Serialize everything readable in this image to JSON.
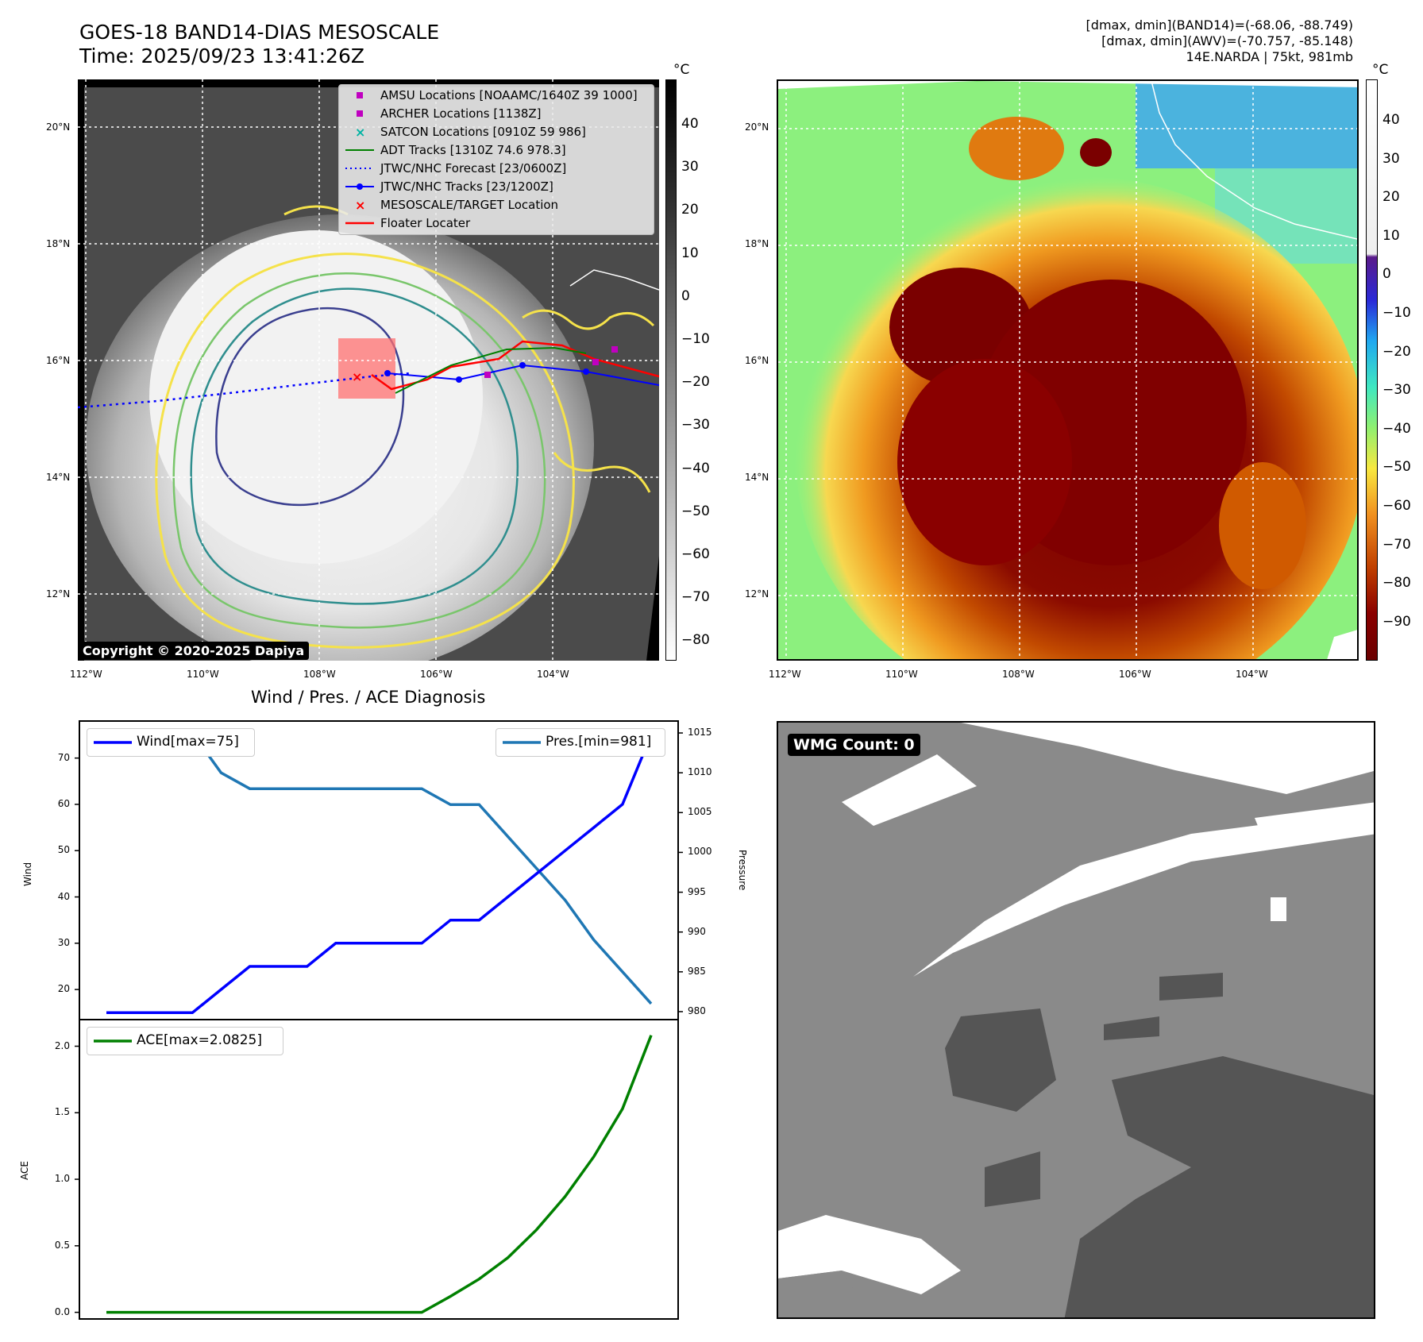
{
  "header": {
    "title_line1": "GOES-18 BAND14-DIAS MESOSCALE",
    "title_line2": "Time: 2025/09/23 13:41:26Z",
    "info_line1": "[dmax, dmin](BAND14)=(-68.06, -88.749)",
    "info_line2": "[dmax, dmin](AWV)=(-70.757, -85.148)",
    "info_line3": "14E.NARDA | 75kt, 981mb"
  },
  "map_axes": {
    "lat_labels": [
      "20°N",
      "18°N",
      "16°N",
      "14°N",
      "12°N"
    ],
    "lon_labels": [
      "112°W",
      "110°W",
      "108°W",
      "106°W",
      "104°W"
    ]
  },
  "left_colorbar": {
    "unit": "°C",
    "ticks": [
      "40",
      "30",
      "20",
      "10",
      "0",
      "−10",
      "−20",
      "−30",
      "−40",
      "−50",
      "−60",
      "−70",
      "−80"
    ]
  },
  "right_colorbar": {
    "unit": "°C",
    "ticks": [
      "40",
      "30",
      "20",
      "10",
      "0",
      "−10",
      "−20",
      "−30",
      "−40",
      "−50",
      "−60",
      "−70",
      "−80",
      "−90"
    ]
  },
  "map_legend": {
    "items": [
      {
        "label": "AMSU Locations [NOAAMC/1640Z 39 1000]",
        "symbol": "square",
        "color": "#c000c0"
      },
      {
        "label": "ARCHER Locations [1138Z]",
        "symbol": "square",
        "color": "#c000c0"
      },
      {
        "label": "SATCON Locations [0910Z 59 986]",
        "symbol": "x",
        "color": "#00b3a3"
      },
      {
        "label": "ADT Tracks [1310Z 74.6 978.3]",
        "symbol": "line",
        "color": "#008000"
      },
      {
        "label": "JTWC/NHC Forecast [23/0600Z]",
        "symbol": "dotted",
        "color": "#0000ff"
      },
      {
        "label": "JTWC/NHC Tracks [23/1200Z]",
        "symbol": "line-dot",
        "color": "#0000ff"
      },
      {
        "label": "MESOSCALE/TARGET Location",
        "symbol": "x",
        "color": "#ff0000"
      },
      {
        "label": "Floater Locater",
        "symbol": "line",
        "color": "#ff0000"
      }
    ]
  },
  "copyright": "Copyright © 2020-2025 Dapiya",
  "diagnosis": {
    "title": "Wind / Pres. / ACE Diagnosis",
    "wind_ylabel": "Wind",
    "pressure_ylabel": "Pressure",
    "ace_ylabel": "ACE",
    "wind_legend": "Wind[max=75]",
    "pres_legend": "Pres.[min=981]",
    "ace_legend": "ACE[max=2.0825]",
    "wind_ticks": [
      "70",
      "60",
      "50",
      "40",
      "30",
      "20"
    ],
    "pres_ticks": [
      "1015",
      "1010",
      "1005",
      "1000",
      "995",
      "990",
      "985",
      "980"
    ],
    "ace_ticks": [
      "2.0",
      "1.5",
      "1.0",
      "0.5",
      "0.0"
    ]
  },
  "wmg": {
    "label": "WMG Count: 0"
  },
  "chart_data": [
    {
      "type": "line",
      "title": "Wind / Pres. / ACE Diagnosis",
      "ylabel": "Wind",
      "ylim": [
        13.5,
        78
      ],
      "series": [
        {
          "name": "Wind[max=75]",
          "color": "#0000ff",
          "values": [
            15,
            15,
            15,
            15,
            20,
            25,
            25,
            25,
            30,
            30,
            30,
            30,
            35,
            35,
            40,
            45,
            50,
            55,
            60,
            75
          ]
        }
      ]
    },
    {
      "type": "line",
      "ylabel": "Pressure",
      "ylim": [
        979,
        1016.5
      ],
      "series": [
        {
          "name": "Pres.[min=981]",
          "color": "#1f77b4",
          "values": [
            1015,
            1015,
            1015,
            1015,
            1010,
            1008,
            1008,
            1008,
            1008,
            1008,
            1008,
            1008,
            1006,
            1006,
            1002,
            998,
            994,
            989,
            985,
            981
          ]
        }
      ]
    },
    {
      "type": "line",
      "ylabel": "ACE",
      "ylim": [
        -0.05,
        2.2
      ],
      "series": [
        {
          "name": "ACE[max=2.0825]",
          "color": "#008000",
          "values": [
            0,
            0,
            0,
            0,
            0,
            0,
            0,
            0,
            0,
            0,
            0,
            0,
            0.12,
            0.25,
            0.41,
            0.62,
            0.87,
            1.17,
            1.53,
            2.0825
          ]
        }
      ]
    }
  ]
}
